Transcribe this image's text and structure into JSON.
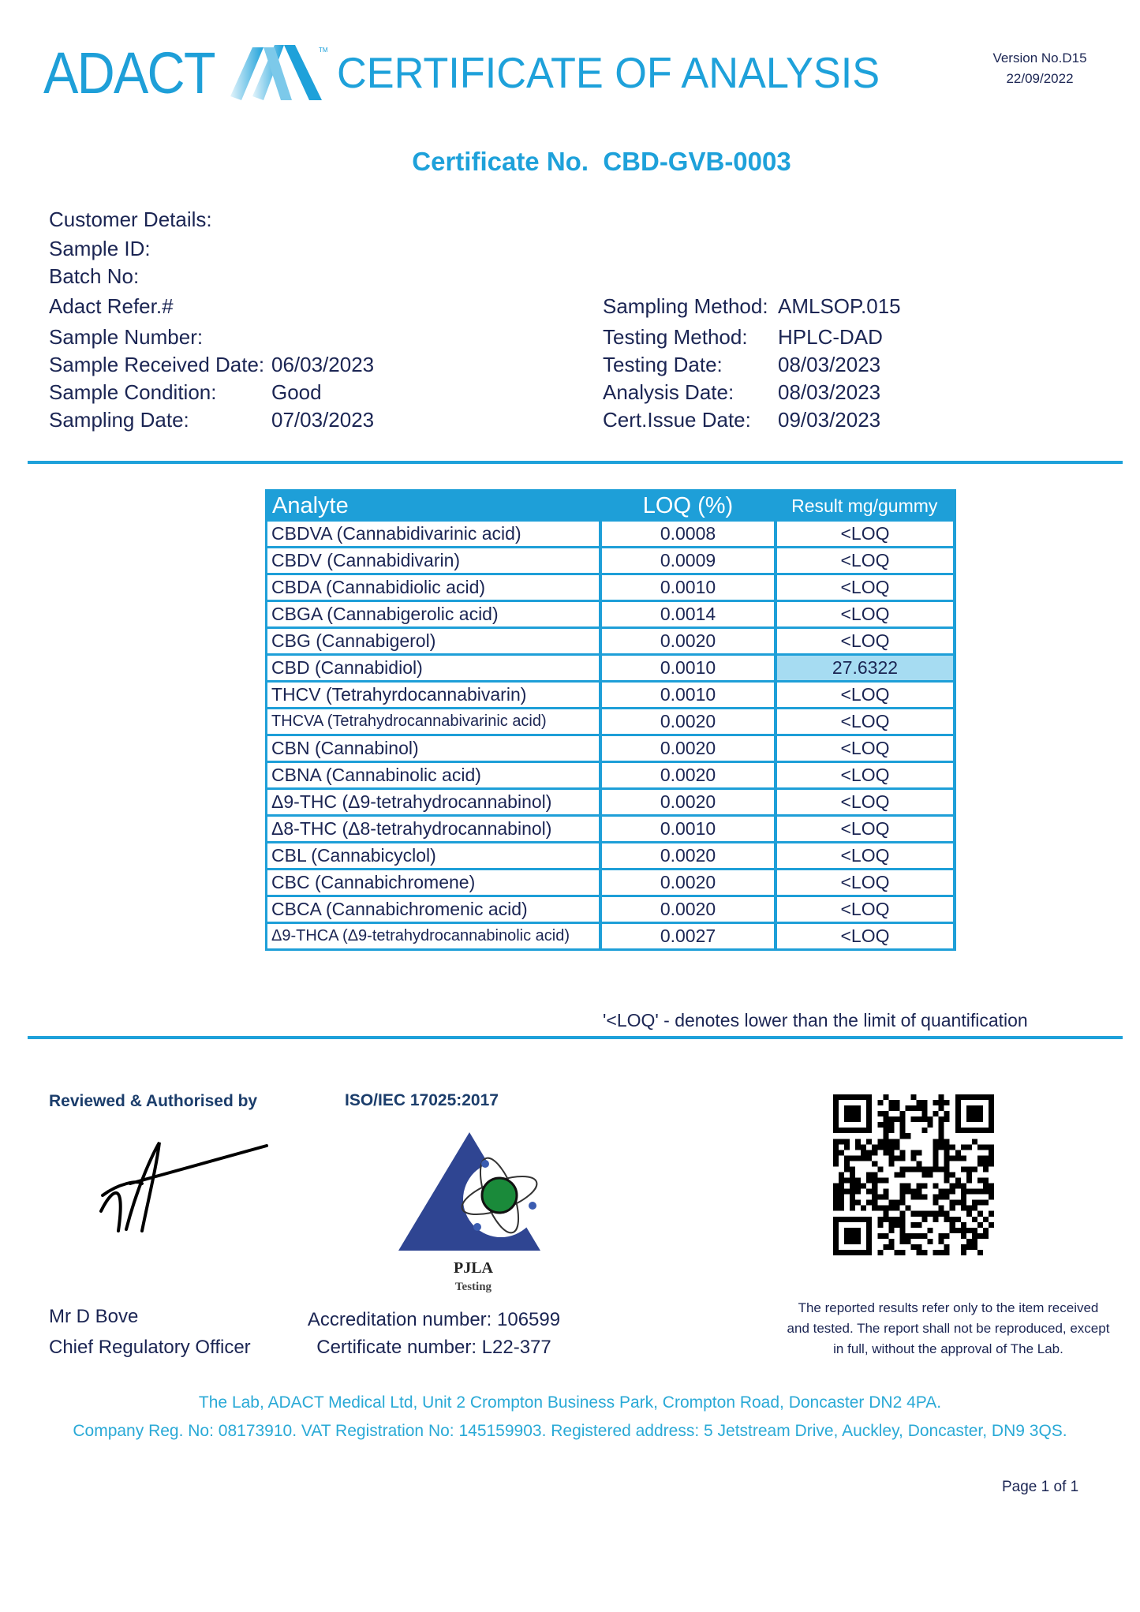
{
  "header": {
    "logo_text": "ADACT",
    "logo_tm": "TM",
    "title": "CERTIFICATE OF ANALYSIS",
    "version": "Version No.D15",
    "version_date": "22/09/2022",
    "brand_color": "#1ea1da"
  },
  "certificate": {
    "label": "Certificate No.",
    "number": "CBD-GVB-0003"
  },
  "details_left": [
    {
      "label": "Customer Details:",
      "value": ""
    },
    {
      "label": "Sample ID:",
      "value": ""
    },
    {
      "label": "Batch No:",
      "value": ""
    },
    {
      "label": "Adact Refer.#",
      "value": ""
    },
    {
      "label": "Sample Number:",
      "value": ""
    },
    {
      "label": "Sample Received Date:",
      "value": "06/03/2023"
    },
    {
      "label": "Sample Condition:",
      "value": "Good"
    },
    {
      "label": "Sampling Date:",
      "value": "07/03/2023"
    }
  ],
  "details_right": [
    {
      "label": "Sampling Method:",
      "value": "AMLSOP.015"
    },
    {
      "label": "Testing Method:",
      "value": "HPLC-DAD"
    },
    {
      "label": "Testing Date:",
      "value": "08/03/2023"
    },
    {
      "label": "Analysis Date:",
      "value": "08/03/2023"
    },
    {
      "label": "Cert.Issue Date:",
      "value": "09/03/2023"
    }
  ],
  "table": {
    "headers": [
      "Analyte",
      "LOQ (%)",
      "Result mg/gummy"
    ],
    "rows": [
      [
        "CBDVA (Cannabidivarinic acid)",
        "0.0008",
        "<LOQ"
      ],
      [
        "CBDV (Cannabidivarin)",
        "0.0009",
        "<LOQ"
      ],
      [
        "CBDA (Cannabidiolic acid)",
        "0.0010",
        "<LOQ"
      ],
      [
        "CBGA (Cannabigerolic acid)",
        "0.0014",
        "<LOQ"
      ],
      [
        "CBG (Cannabigerol)",
        "0.0020",
        "<LOQ"
      ],
      [
        "CBD (Cannabidiol)",
        "0.0010",
        "27.6322"
      ],
      [
        "THCV (Tetrahyrdocannabivarin)",
        "0.0010",
        "<LOQ"
      ],
      [
        "THCVA (Tetrahydrocannabivarinic acid)",
        "0.0020",
        "<LOQ"
      ],
      [
        "CBN (Cannabinol)",
        "0.0020",
        "<LOQ"
      ],
      [
        "CBNA (Cannabinolic acid)",
        "0.0020",
        "<LOQ"
      ],
      [
        "Δ9-THC (Δ9-tetrahydrocannabinol)",
        "0.0020",
        "<LOQ"
      ],
      [
        "Δ8-THC (Δ8-tetrahydrocannabinol)",
        "0.0010",
        "<LOQ"
      ],
      [
        "CBL (Cannabicyclol)",
        "0.0020",
        "<LOQ"
      ],
      [
        "CBC (Cannabichromene)",
        "0.0020",
        "<LOQ"
      ],
      [
        "CBCA (Cannabichromenic acid)",
        "0.0020",
        "<LOQ"
      ],
      [
        "Δ9-THCA (Δ9-tetrahydrocannabinolic acid)",
        "0.0027",
        "<LOQ"
      ]
    ],
    "highlight_color": "#a6dcf2"
  },
  "footnote": "'<LOQ' - denotes lower than the limit of quantification",
  "authorisation": {
    "heading": "Reviewed & Authorised by",
    "name": "Mr D Bove",
    "role": "Chief Regulatory Officer"
  },
  "accreditation": {
    "standard": "ISO/IEC 17025:2017",
    "logo_text": "PJLA",
    "logo_subtext": "Testing",
    "accreditation_number": "Accreditation number: 106599",
    "certificate_number": "Certificate number: L22-377"
  },
  "disclaimer": [
    "The reported results refer only to the item received",
    "and tested. The report shall not be reproduced, except",
    "in full, without the approval of The Lab."
  ],
  "footer": {
    "line1": "The Lab, ADACT Medical Ltd, Unit 2 Crompton Business Park, Crompton Road, Doncaster DN2 4PA.",
    "line2": "Company Reg. No: 08173910. VAT Registration No: 145159903. Registered address: 5 Jetstream Drive, Auckley, Doncaster, DN9 3QS.",
    "page": "Page 1 of 1"
  }
}
